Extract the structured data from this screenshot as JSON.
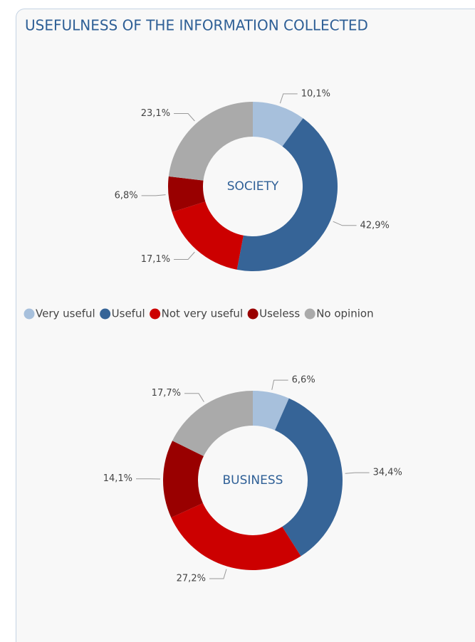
{
  "title": "USEFULNESS OF THE INFORMATION COLLECTED",
  "chart_data": [
    {
      "type": "donut",
      "center_label": "SOCIETY",
      "categories": [
        "Very useful",
        "Useful",
        "Not very useful",
        "Useless",
        "No opinion"
      ],
      "values": [
        10.1,
        42.9,
        17.1,
        6.8,
        23.1
      ],
      "value_labels": [
        "10,1%",
        "42,9%",
        "17,1%",
        "6,8%",
        "23,1%"
      ],
      "colors": [
        "#a7c0dc",
        "#366497",
        "#cc0000",
        "#990000",
        "#aaaaaa"
      ]
    },
    {
      "type": "donut",
      "center_label": "BUSINESS",
      "categories": [
        "Very useful",
        "Useful",
        "Not very useful",
        "Useless",
        "No opinion"
      ],
      "values": [
        6.6,
        34.4,
        27.2,
        14.1,
        17.7
      ],
      "value_labels": [
        "6,6%",
        "34,4%",
        "27,2%",
        "14,1%",
        "17,7%"
      ],
      "colors": [
        "#a7c0dc",
        "#366497",
        "#cc0000",
        "#990000",
        "#aaaaaa"
      ]
    }
  ]
}
